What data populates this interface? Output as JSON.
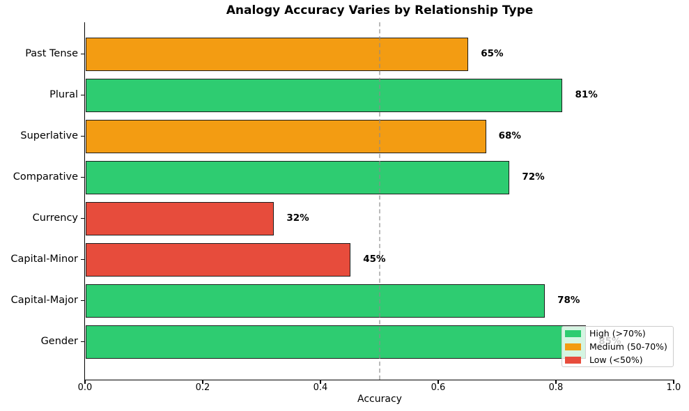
{
  "chart_data": {
    "type": "bar",
    "orientation": "horizontal",
    "title": "Analogy Accuracy Varies by Relationship Type",
    "xlabel": "Accuracy",
    "ylabel": "",
    "xlim": [
      0.0,
      1.0
    ],
    "x_ticks": [
      "0.0",
      "0.2",
      "0.4",
      "0.6",
      "0.8",
      "1.0"
    ],
    "x_tick_values": [
      0.0,
      0.2,
      0.4,
      0.6,
      0.8,
      1.0
    ],
    "categories": [
      "Past Tense",
      "Plural",
      "Superlative",
      "Comparative",
      "Currency",
      "Capital-Minor",
      "Capital-Major",
      "Gender"
    ],
    "values": [
      0.65,
      0.81,
      0.68,
      0.72,
      0.32,
      0.45,
      0.78,
      0.85
    ],
    "value_labels": [
      "65%",
      "81%",
      "68%",
      "72%",
      "32%",
      "45%",
      "78%",
      "85%"
    ],
    "bar_colors": [
      "#f39c12",
      "#2ecc71",
      "#f39c12",
      "#2ecc71",
      "#e74c3c",
      "#e74c3c",
      "#2ecc71",
      "#2ecc71"
    ],
    "grid": false,
    "reference_line": {
      "x": 0.5,
      "style": "dashed",
      "color": "#8c8c8c"
    },
    "legend": {
      "position": "lower right",
      "entries": [
        {
          "label": "High (>70%)",
          "color": "#2ecc71"
        },
        {
          "label": "Medium (50-70%)",
          "color": "#f39c12"
        },
        {
          "label": "Low (<50%)",
          "color": "#e74c3c"
        }
      ]
    },
    "colors": {
      "bar_edge": "#1c1c1c",
      "axis": "#000000",
      "text": "#000000",
      "legend_border": "#cccccc"
    }
  }
}
